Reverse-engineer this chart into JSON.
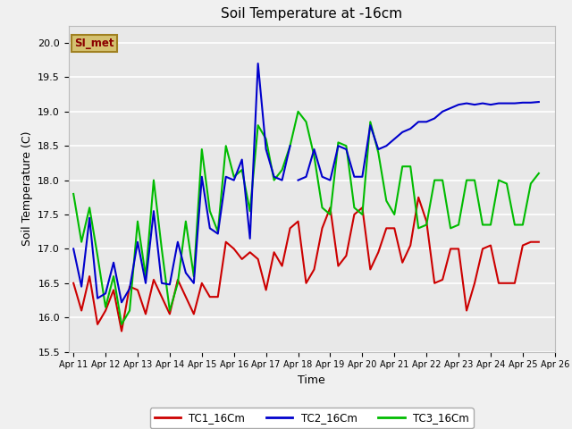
{
  "title": "Soil Temperature at -16cm",
  "xlabel": "Time",
  "ylabel": "Soil Temperature (C)",
  "ylim": [
    15.5,
    20.25
  ],
  "background_color": "#f0f0f0",
  "plot_bg_color": "#e8e8e8",
  "grid_color": "#ffffff",
  "watermark_text": "SI_met",
  "watermark_bg": "#d4c170",
  "watermark_fg": "#8b0000",
  "watermark_border": "#a08020",
  "legend_labels": [
    "TC1_16Cm",
    "TC2_16Cm",
    "TC3_16Cm"
  ],
  "legend_colors": [
    "#cc0000",
    "#0000cc",
    "#00bb00"
  ],
  "tc1_x": [
    0,
    0.5,
    1,
    1.5,
    2,
    2.5,
    3,
    3.5,
    4,
    4.5,
    5,
    5.5,
    6,
    6.5,
    7,
    7.5,
    8,
    8.5,
    9,
    9.5,
    10,
    10.5,
    11,
    11.5,
    12,
    12.5,
    13,
    13.5,
    14,
    14.5,
    15,
    15.5,
    16,
    16.5,
    17,
    17.5,
    18,
    18.5,
    19,
    19.5,
    20,
    20.5,
    21,
    21.5,
    22,
    22.5,
    23,
    23.5,
    24,
    24.5,
    25,
    25.5,
    26,
    26.5,
    27,
    27.5,
    28,
    28.5,
    29
  ],
  "tc1_y": [
    16.5,
    16.1,
    16.6,
    15.9,
    16.1,
    16.4,
    15.8,
    16.45,
    16.4,
    16.05,
    16.55,
    16.3,
    16.05,
    16.55,
    16.3,
    16.05,
    16.5,
    16.3,
    16.3,
    17.1,
    17.0,
    16.85,
    16.95,
    16.85,
    16.4,
    16.95,
    16.75,
    17.3,
    17.4,
    16.5,
    16.7,
    17.3,
    17.6,
    16.75,
    16.9,
    17.5,
    17.6,
    16.7,
    16.95,
    17.3,
    17.3,
    16.8,
    17.05,
    17.75,
    17.4,
    16.5,
    16.55,
    17.0,
    17.0,
    16.1,
    16.5,
    17.0,
    17.05,
    16.5,
    16.5,
    16.5,
    17.05,
    17.1,
    17.1
  ],
  "tc2_x_seg1": [
    0,
    0.5,
    1,
    1.5,
    2,
    2.5,
    3,
    3.5,
    4,
    4.5,
    5,
    5.5,
    6,
    6.5,
    7,
    7.5,
    8,
    8.5,
    9,
    9.5,
    10,
    10.5,
    11,
    11.5,
    12,
    12.5,
    13,
    13.5
  ],
  "tc2_y_seg1": [
    17.0,
    16.45,
    17.45,
    16.28,
    16.35,
    16.8,
    16.22,
    16.42,
    17.1,
    16.5,
    17.55,
    16.5,
    16.48,
    17.1,
    16.65,
    16.5,
    18.05,
    17.3,
    17.22,
    18.05,
    18.0,
    18.3,
    17.15,
    19.7,
    18.45,
    18.05,
    18.0,
    18.5
  ],
  "tc2_x_seg2": [
    14,
    14.5,
    15,
    15.5,
    16,
    16.5,
    17,
    17.5,
    18,
    18.5,
    19,
    19.5,
    20,
    20.5,
    21,
    21.5,
    22,
    22.5,
    23,
    23.5,
    24,
    24.5,
    25,
    25.5,
    26,
    26.5,
    27,
    27.5,
    28,
    28.5,
    29
  ],
  "tc2_y_seg2": [
    18.0,
    18.05,
    18.45,
    18.05,
    18.0,
    18.5,
    18.45,
    18.05,
    18.05,
    18.8,
    18.45,
    18.5,
    18.6,
    18.7,
    18.75,
    18.85,
    18.85,
    18.9,
    19.0,
    19.05,
    19.1,
    19.12,
    19.1,
    19.12,
    19.1,
    19.12,
    19.12,
    19.12,
    19.13,
    19.13,
    19.14
  ],
  "tc3_x": [
    0,
    0.5,
    1,
    1.5,
    2,
    2.5,
    3,
    3.5,
    4,
    4.5,
    5,
    5.5,
    6,
    6.5,
    7,
    7.5,
    8,
    8.5,
    9,
    9.5,
    10,
    10.5,
    11,
    11.5,
    12,
    12.5,
    13,
    13.5,
    14,
    14.5,
    15,
    15.5,
    16,
    16.5,
    17,
    17.5,
    18,
    18.5,
    19,
    19.5,
    20,
    20.5,
    21,
    21.5,
    22,
    22.5,
    23,
    23.5,
    24,
    24.5,
    25,
    25.5,
    26,
    26.5,
    27,
    27.5,
    28,
    28.5,
    29
  ],
  "tc3_y": [
    17.8,
    17.1,
    17.6,
    16.9,
    16.15,
    16.6,
    15.9,
    16.1,
    17.4,
    16.6,
    18.0,
    17.0,
    16.1,
    16.5,
    17.4,
    16.6,
    18.45,
    17.55,
    17.25,
    18.5,
    18.05,
    18.15,
    17.55,
    18.8,
    18.6,
    18.0,
    18.15,
    18.5,
    19.0,
    18.85,
    18.35,
    17.6,
    17.5,
    18.55,
    18.5,
    17.6,
    17.5,
    18.85,
    18.4,
    17.7,
    17.5,
    18.2,
    18.2,
    17.3,
    17.35,
    18.0,
    18.0,
    17.3,
    17.35,
    18.0,
    18.0,
    17.35,
    17.35,
    18.0,
    17.95,
    17.35,
    17.35,
    17.95,
    18.1
  ],
  "xtick_labels": [
    "Apr 11",
    "Apr 12",
    "Apr 13",
    "Apr 14",
    "Apr 15",
    "Apr 16",
    "Apr 17",
    "Apr 18",
    "Apr 19",
    "Apr 20",
    "Apr 21",
    "Apr 22",
    "Apr 23",
    "Apr 24",
    "Apr 25",
    "Apr 26"
  ],
  "xtick_positions": [
    0,
    2,
    4,
    6,
    8,
    10,
    12,
    14,
    16,
    18,
    20,
    22,
    24,
    26,
    28,
    30
  ],
  "xlim": [
    -0.3,
    30
  ]
}
